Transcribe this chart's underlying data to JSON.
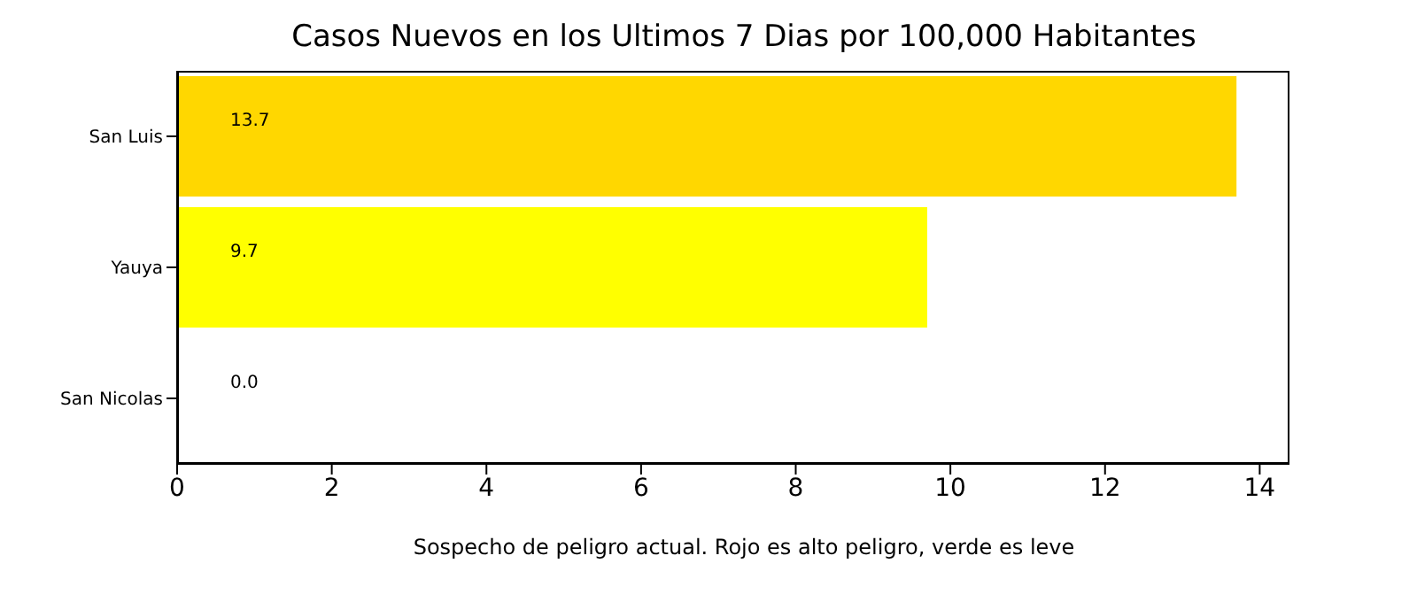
{
  "chart_data": {
    "type": "bar",
    "orientation": "horizontal",
    "title": "Casos Nuevos en los Ultimos 7 Dias por 100,000 Habitantes",
    "xlabel": "Sospecho de peligro actual. Rojo es alto peligro, verde es leve",
    "categories": [
      "San Luis",
      "Yauya",
      "San Nicolas"
    ],
    "values": [
      13.7,
      9.7,
      0.0
    ],
    "colors": [
      "#ffd700",
      "#ffff00",
      "#008000"
    ],
    "value_labels": [
      "13.7",
      "9.7",
      "0.0"
    ],
    "xlim": [
      0,
      14.385
    ],
    "xticks": [
      0,
      2,
      4,
      6,
      8,
      10,
      12,
      14
    ],
    "grid": false,
    "legend": false
  }
}
